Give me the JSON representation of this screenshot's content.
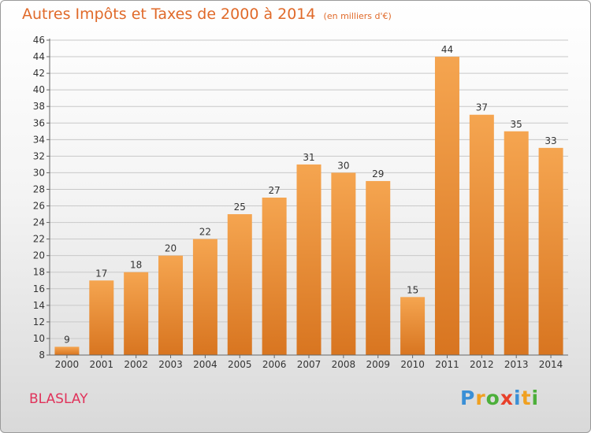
{
  "title": "Autres Impôts et Taxes de 2000 à 2014",
  "subtitle": "(en milliers d'€)",
  "commune": "BLASLAY",
  "logo": {
    "text": "Proxiti",
    "letters": [
      {
        "ch": "P",
        "color": "#3a8fd6"
      },
      {
        "ch": "r",
        "color": "#f0a020"
      },
      {
        "ch": "o",
        "color": "#4caf3a"
      },
      {
        "ch": "x",
        "color": "#e8402a"
      },
      {
        "ch": "i",
        "color": "#3a8fd6"
      },
      {
        "ch": "t",
        "color": "#f0a020"
      },
      {
        "ch": "i",
        "color": "#4caf3a"
      }
    ]
  },
  "colors": {
    "bar_top": "#f5a550",
    "bar_bottom": "#d87520",
    "grid": "#c8c8c8",
    "accent": "#e06a2a"
  },
  "chart_data": {
    "type": "bar",
    "title": "Autres Impôts et Taxes de 2000 à 2014",
    "subtitle": "(en milliers d'€)",
    "categories": [
      "2000",
      "2001",
      "2002",
      "2003",
      "2004",
      "2005",
      "2006",
      "2007",
      "2008",
      "2009",
      "2010",
      "2011",
      "2012",
      "2013",
      "2014"
    ],
    "values": [
      9,
      17,
      18,
      20,
      22,
      25,
      27,
      31,
      30,
      29,
      15,
      44,
      37,
      35,
      33
    ],
    "ylim": [
      8,
      46
    ],
    "yticks": [
      8,
      10,
      12,
      14,
      16,
      18,
      20,
      22,
      24,
      26,
      28,
      30,
      32,
      34,
      36,
      38,
      40,
      42,
      44,
      46
    ],
    "grid": true,
    "legend": "none"
  }
}
